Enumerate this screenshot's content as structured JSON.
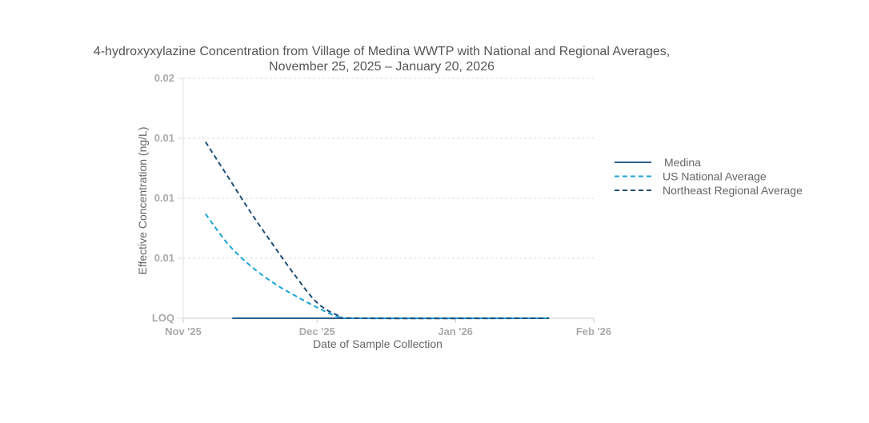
{
  "chart_data": {
    "type": "line",
    "title_lines": [
      "4-hydroxyxylazine Concentration from Village of Medina WWTP with National and Regional Averages,",
      "November 25, 2025 – January 20, 2026"
    ],
    "xlabel": "Date of Sample Collection",
    "ylabel": "Effective Concentration (ng/L)",
    "x_tick_labels": [
      "Nov '25",
      "Dec '25",
      "Jan '26",
      "Feb '26"
    ],
    "x_tick_dates": [
      "2025-11-01",
      "2025-12-01",
      "2026-01-01",
      "2026-02-01"
    ],
    "xlim_dates": [
      "2025-11-01",
      "2026-02-01"
    ],
    "y_tick_labels": [
      "LOQ",
      "0.01",
      "0.01",
      "0.01",
      "0.02"
    ],
    "y_tick_values": [
      0,
      0.005,
      0.01,
      0.015,
      0.02
    ],
    "ylim": [
      0,
      0.02
    ],
    "grid": true,
    "legend_position": "right",
    "series": [
      {
        "name": "Medina",
        "color": "#2e5f8a",
        "dash": "solid",
        "points": [
          {
            "date": "2025-11-12",
            "value": 0
          },
          {
            "date": "2026-01-22",
            "value": 0
          }
        ]
      },
      {
        "name": "US National Average",
        "color": "#1aa3d9",
        "dash": "dashed",
        "points": [
          {
            "date": "2025-11-06",
            "value": 0.0087
          },
          {
            "date": "2025-11-11",
            "value": 0.0062
          },
          {
            "date": "2025-11-16",
            "value": 0.0044
          },
          {
            "date": "2025-11-21",
            "value": 0.003
          },
          {
            "date": "2025-11-26",
            "value": 0.0019
          },
          {
            "date": "2025-12-01",
            "value": 0.0009
          },
          {
            "date": "2025-12-06",
            "value": 0.0001
          },
          {
            "date": "2025-12-11",
            "value": 0.0
          },
          {
            "date": "2026-01-22",
            "value": 0.0
          }
        ]
      },
      {
        "name": "Northeast Regional Average",
        "color": "#1f4e79",
        "dash": "dashed",
        "points": [
          {
            "date": "2025-11-06",
            "value": 0.0147
          },
          {
            "date": "2025-11-11",
            "value": 0.0118
          },
          {
            "date": "2025-11-16",
            "value": 0.0089
          },
          {
            "date": "2025-11-21",
            "value": 0.0062
          },
          {
            "date": "2025-11-26",
            "value": 0.0036
          },
          {
            "date": "2025-12-01",
            "value": 0.0013
          },
          {
            "date": "2025-12-06",
            "value": 0.0002
          },
          {
            "date": "2025-12-11",
            "value": 0.0
          },
          {
            "date": "2026-01-22",
            "value": 0.0
          }
        ]
      }
    ]
  }
}
